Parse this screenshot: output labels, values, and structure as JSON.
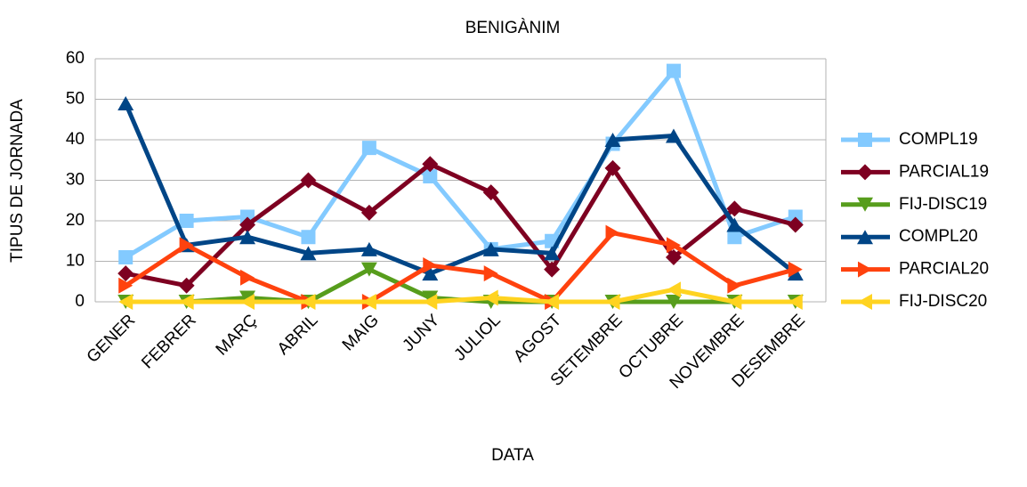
{
  "chart_data": {
    "type": "line",
    "title": "BENIGÀNIM",
    "x_label": "DATA",
    "y_label": "TIPUS DE JORNADA",
    "categories": [
      "GENER",
      "FEBRER",
      "MARÇ",
      "ABRIL",
      "MAIG",
      "JUNY",
      "JULIOL",
      "AGOST",
      "SETEMBRE",
      "OCTUBRE",
      "NOVEMBRE",
      "DESEMBRE"
    ],
    "series": [
      {
        "name": "COMPL19",
        "color": "#83caff",
        "marker": "square",
        "values": [
          11,
          20,
          21,
          16,
          38,
          31,
          13,
          15,
          39,
          57,
          16,
          21
        ]
      },
      {
        "name": "PARCIAL19",
        "color": "#7e0021",
        "marker": "diamond",
        "values": [
          7,
          4,
          19,
          30,
          22,
          34,
          27,
          8,
          33,
          11,
          23,
          19
        ]
      },
      {
        "name": "FIJ-DISC19",
        "color": "#579d1c",
        "marker": "triangle-down",
        "values": [
          0,
          0,
          1,
          0,
          8,
          1,
          0,
          0,
          0,
          0,
          0,
          0
        ]
      },
      {
        "name": "COMPL20",
        "color": "#004586",
        "marker": "triangle-up",
        "values": [
          49,
          14,
          16,
          12,
          13,
          7,
          13,
          12,
          40,
          41,
          19,
          7
        ]
      },
      {
        "name": "PARCIAL20",
        "color": "#ff420e",
        "marker": "triangle-right",
        "values": [
          4,
          14,
          6,
          0,
          0,
          9,
          7,
          0,
          17,
          14,
          4,
          8
        ]
      },
      {
        "name": "FIJ-DISC20",
        "color": "#ffd320",
        "marker": "triangle-left",
        "values": [
          0,
          0,
          0,
          0,
          0,
          0,
          1,
          0,
          0,
          3,
          0,
          0
        ]
      }
    ],
    "ylim": [
      0,
      60
    ],
    "yticks": [
      0,
      10,
      20,
      30,
      40,
      50,
      60
    ],
    "grid": true,
    "legend": "right"
  }
}
